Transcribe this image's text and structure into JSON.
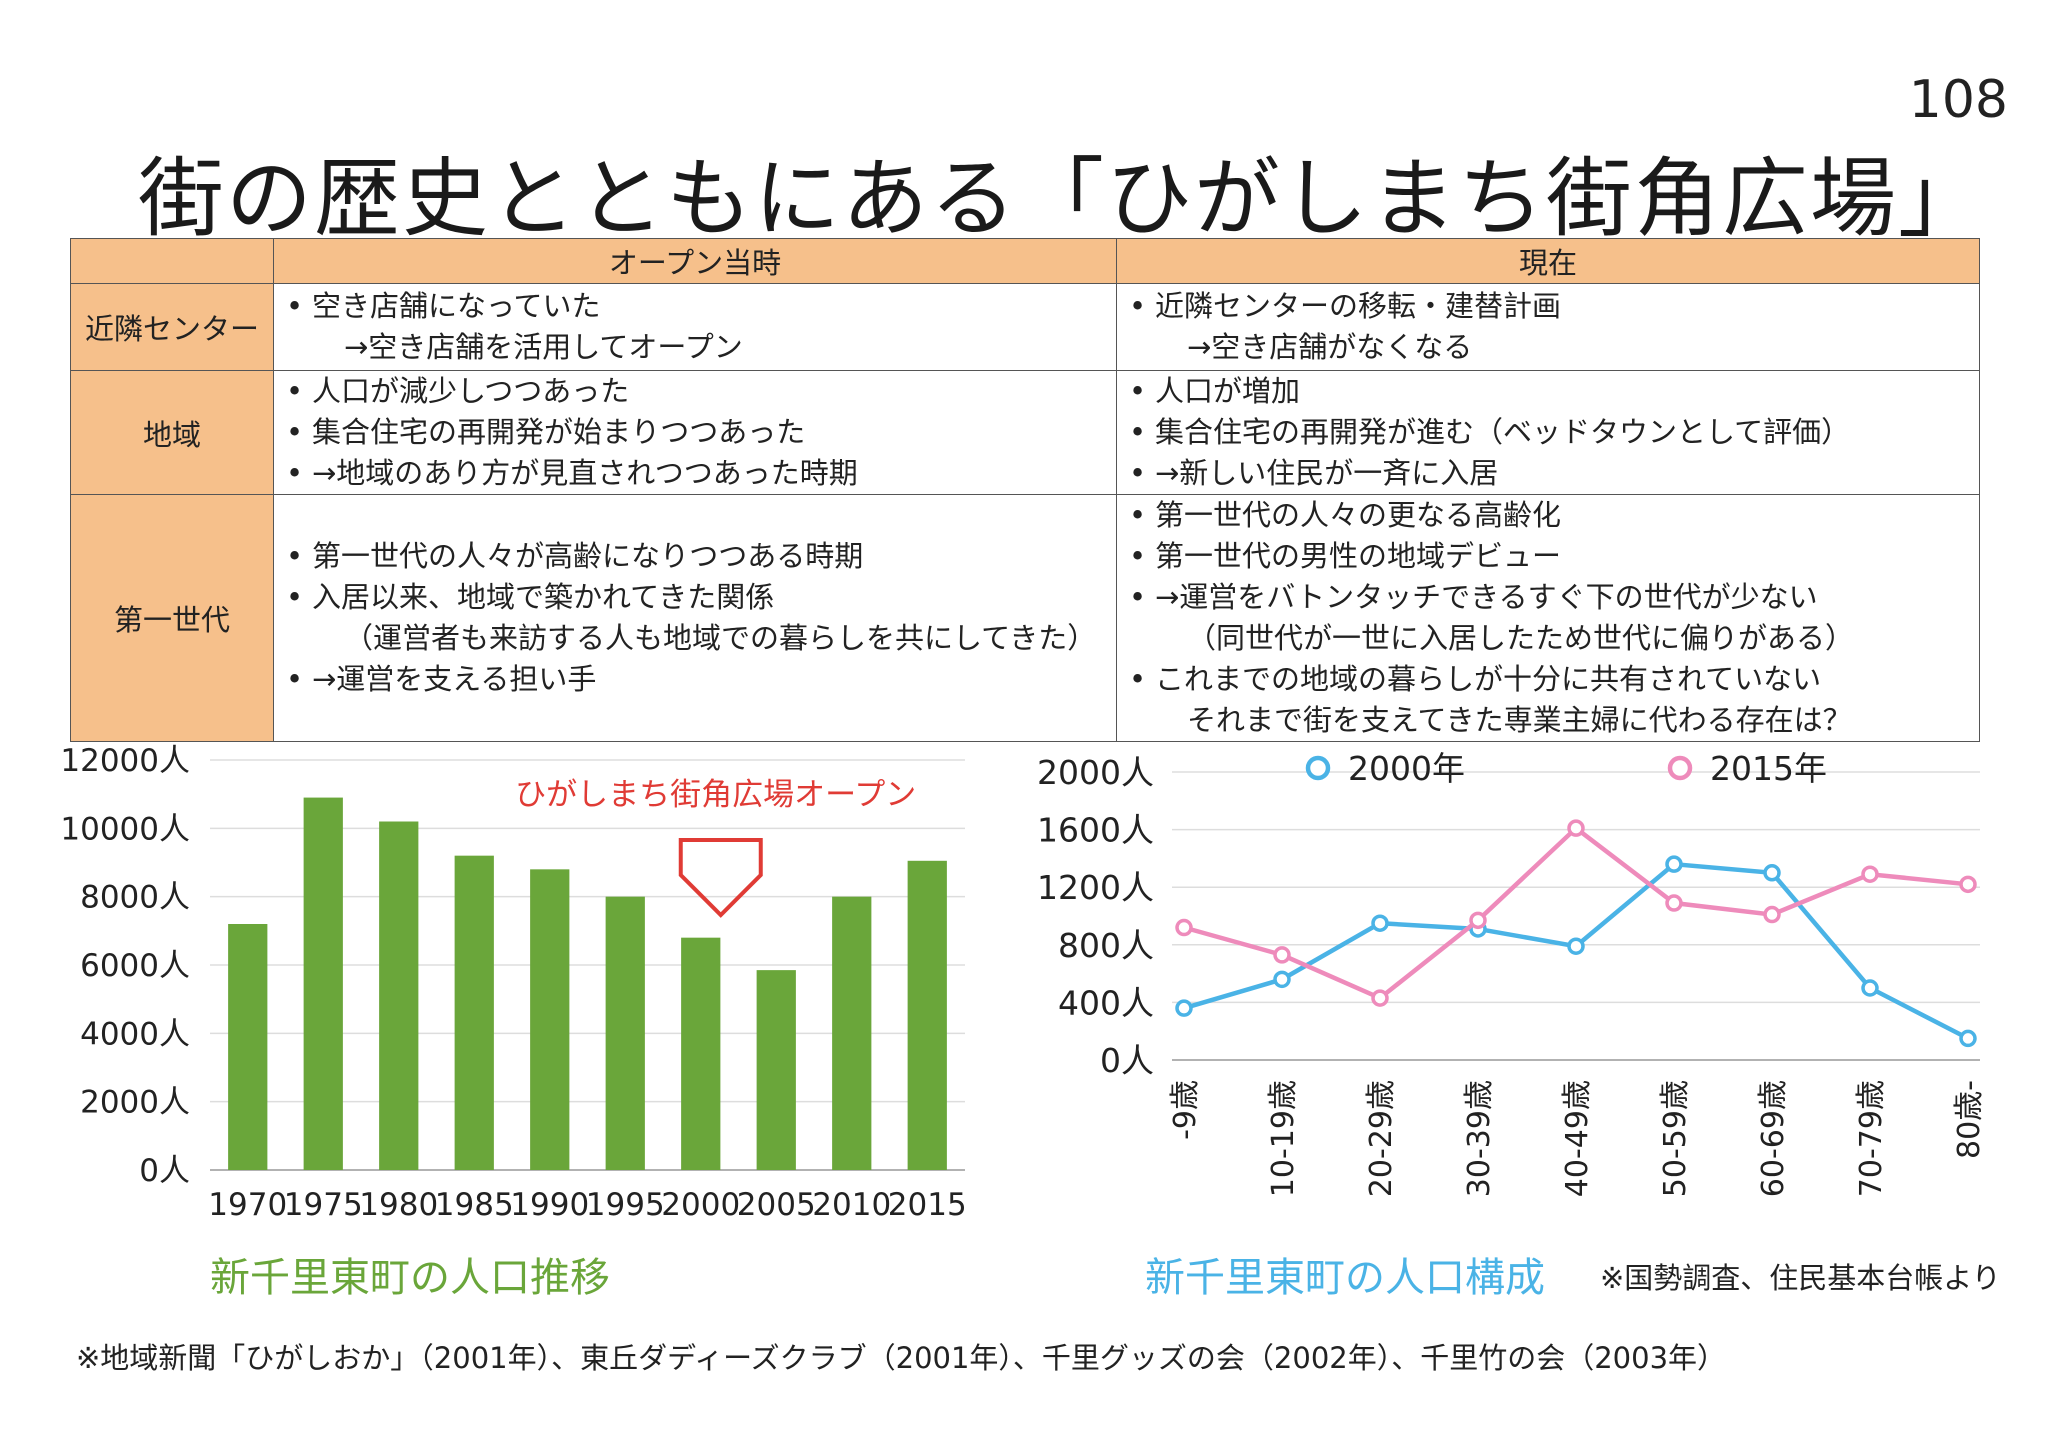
{
  "slide": {
    "page_number": "108",
    "title": "街の歴史とともにある「ひがしまち街角広場」",
    "source_note": "※国勢調査、住民基本台帳より",
    "footnote": "※地域新聞「ひがしおか」（2001年）、東丘ダディーズクラブ（2001年）、千里グッズの会（2002年）、千里竹の会（2003年）"
  },
  "table": {
    "headers": [
      "",
      "オープン当時",
      "現在"
    ],
    "rows": [
      {
        "label": "近隣センター",
        "open": [
          {
            "text": "空き店舗になっていた",
            "bullet": true
          },
          {
            "text": "→空き店舗を活用してオープン",
            "bullet": false
          }
        ],
        "now": [
          {
            "text": "近隣センターの移転・建替計画",
            "bullet": true
          },
          {
            "text": "→空き店舗がなくなる",
            "bullet": false
          }
        ]
      },
      {
        "label": "地域",
        "open": [
          {
            "text": "人口が減少しつつあった",
            "bullet": true
          },
          {
            "text": "集合住宅の再開発が始まりつつあった",
            "bullet": true
          },
          {
            "text": "→地域のあり方が見直されつつあった時期",
            "bullet": true
          }
        ],
        "now": [
          {
            "text": "人口が増加",
            "bullet": true
          },
          {
            "text": "集合住宅の再開発が進む（ベッドタウンとして評価）",
            "bullet": true
          },
          {
            "text": "→新しい住民が一斉に入居",
            "bullet": true
          }
        ]
      },
      {
        "label": "第一世代",
        "open": [
          {
            "text": "第一世代の人々が高齢になりつつある時期",
            "bullet": true
          },
          {
            "text": "入居以来、地域で築かれてきた関係",
            "bullet": true
          },
          {
            "text": "（運営者も来訪する人も地域での暮らしを共にしてきた）",
            "bullet": false
          },
          {
            "text": "→運営を支える担い手",
            "bullet": true
          }
        ],
        "now": [
          {
            "text": "第一世代の人々の更なる高齢化",
            "bullet": true
          },
          {
            "text": "第一世代の男性の地域デビュー",
            "bullet": true
          },
          {
            "text": "→運営をバトンタッチできるすぐ下の世代が少ない",
            "bullet": true
          },
          {
            "text": "（同世代が一世に入居したため世代に偏りがある）",
            "bullet": false
          },
          {
            "text": "これまでの地域の暮らしが十分に共有されていない",
            "bullet": true
          },
          {
            "text": "それまで街を支えてきた専業主婦に代わる存在は？",
            "bullet": false
          }
        ]
      }
    ]
  },
  "chart_data": [
    {
      "type": "bar",
      "title": "新千里東町の人口推移",
      "categories": [
        "1970",
        "1975",
        "1980",
        "1985",
        "1990",
        "1995",
        "2000",
        "2005",
        "2010",
        "2015"
      ],
      "values": [
        7200,
        10900,
        10200,
        9200,
        8800,
        8000,
        6800,
        5850,
        8000,
        9050
      ],
      "ylim": [
        0,
        12000
      ],
      "yticks": [
        "0人",
        "2000人",
        "4000人",
        "6000人",
        "8000人",
        "10000人",
        "12000人"
      ],
      "ytick_values": [
        0,
        2000,
        4000,
        6000,
        8000,
        10000,
        12000
      ],
      "annotation": {
        "text": "ひがしまち街角広場オープン",
        "at_category": "2000",
        "marker": "down-arrow"
      },
      "grid": true,
      "bar_color": "#6aa63a",
      "title_color": "#6aa63a",
      "annotation_color": "#e03b35"
    },
    {
      "type": "line",
      "title": "新千里東町の人口構成",
      "categories": [
        "-9歳",
        "10-19歳",
        "20-29歳",
        "30-39歳",
        "40-49歳",
        "50-59歳",
        "60-69歳",
        "70-79歳",
        "80歳-"
      ],
      "series": [
        {
          "name": "2000年",
          "values": [
            360,
            560,
            950,
            910,
            790,
            1360,
            1300,
            500,
            150
          ],
          "color": "#4ab3e6"
        },
        {
          "name": "2015年",
          "values": [
            920,
            730,
            430,
            970,
            1610,
            1090,
            1010,
            1290,
            1220
          ],
          "color": "#ee8bbb"
        }
      ],
      "ylim": [
        0,
        2000
      ],
      "yticks": [
        "0人",
        "400人",
        "800人",
        "1200人",
        "1600人",
        "2000人"
      ],
      "ytick_values": [
        0,
        400,
        800,
        1200,
        1600,
        2000
      ],
      "legend": "top",
      "grid": true,
      "title_color": "#4ab3e6"
    }
  ]
}
